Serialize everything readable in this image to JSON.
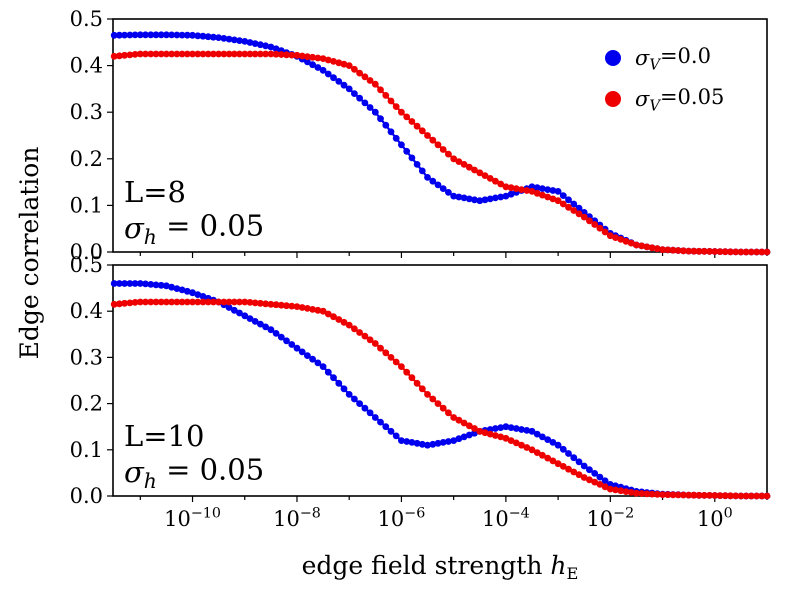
{
  "chart_data": [
    {
      "type": "line",
      "annotation_lines": [
        "L=8",
        "σ_h = 0.05"
      ],
      "ylabel": "Edge correlation",
      "xlabel": "",
      "xscale": "log",
      "xlim": [
        3e-12,
        10
      ],
      "ylim": [
        0,
        0.5
      ],
      "yticks": [
        "0.0",
        "0.1",
        "0.2",
        "0.3",
        "0.4",
        "0.5"
      ],
      "legend_position": "top-right",
      "series": [
        {
          "name": "σ_V=0.0",
          "color": "#0000ee",
          "x_log10": [
            -11.5,
            -11,
            -10.5,
            -10,
            -9.5,
            -9,
            -8.5,
            -8,
            -7.5,
            -7,
            -6.5,
            -6,
            -5.5,
            -5,
            -4.5,
            -4,
            -3.5,
            -3,
            -2.5,
            -2,
            -1.5,
            -1,
            -0.5,
            0,
            0.5,
            1
          ],
          "y": [
            0.465,
            0.466,
            0.466,
            0.465,
            0.46,
            0.452,
            0.44,
            0.42,
            0.39,
            0.35,
            0.3,
            0.23,
            0.16,
            0.12,
            0.11,
            0.12,
            0.14,
            0.13,
            0.085,
            0.04,
            0.015,
            0.005,
            0.002,
            0.001,
            0.0,
            0.0
          ]
        },
        {
          "name": "σ_V=0.05",
          "color": "#ee0000",
          "x_log10": [
            -11.5,
            -11,
            -10.5,
            -10,
            -9.5,
            -9,
            -8.5,
            -8,
            -7.5,
            -7,
            -6.5,
            -6,
            -5.5,
            -5,
            -4.5,
            -4,
            -3.5,
            -3,
            -2.5,
            -2,
            -1.5,
            -1,
            -0.5,
            0,
            0.5,
            1
          ],
          "y": [
            0.42,
            0.425,
            0.425,
            0.425,
            0.425,
            0.425,
            0.425,
            0.422,
            0.415,
            0.4,
            0.36,
            0.3,
            0.25,
            0.2,
            0.17,
            0.14,
            0.13,
            0.11,
            0.075,
            0.035,
            0.015,
            0.005,
            0.002,
            0.001,
            0.0,
            0.0
          ]
        }
      ]
    },
    {
      "type": "line",
      "annotation_lines": [
        "L=10",
        "σ_h = 0.05"
      ],
      "ylabel": "Edge correlation",
      "xlabel": "edge field strength h_E",
      "xscale": "log",
      "xlim": [
        3e-12,
        10
      ],
      "ylim": [
        0,
        0.5
      ],
      "yticks": [
        "0.0",
        "0.1",
        "0.2",
        "0.3",
        "0.4",
        "0.5"
      ],
      "xticks": [
        {
          "base": "10",
          "exp": "−10",
          "log10": -10
        },
        {
          "base": "10",
          "exp": "−8",
          "log10": -8
        },
        {
          "base": "10",
          "exp": "−6",
          "log10": -6
        },
        {
          "base": "10",
          "exp": "−4",
          "log10": -4
        },
        {
          "base": "10",
          "exp": "−2",
          "log10": -2
        },
        {
          "base": "10",
          "exp": "0",
          "log10": 0
        }
      ],
      "series": [
        {
          "name": "σ_V=0.0",
          "color": "#0000ee",
          "x_log10": [
            -11.5,
            -11,
            -10.5,
            -10,
            -9.5,
            -9,
            -8.5,
            -8,
            -7.5,
            -7,
            -6.5,
            -6,
            -5.5,
            -5,
            -4.5,
            -4,
            -3.5,
            -3,
            -2.5,
            -2,
            -1.5,
            -1,
            -0.5,
            0,
            0.5,
            1
          ],
          "y": [
            0.46,
            0.46,
            0.455,
            0.44,
            0.42,
            0.39,
            0.36,
            0.32,
            0.28,
            0.22,
            0.17,
            0.12,
            0.11,
            0.12,
            0.14,
            0.15,
            0.14,
            0.11,
            0.065,
            0.025,
            0.01,
            0.004,
            0.002,
            0.001,
            0.0,
            0.0
          ]
        },
        {
          "name": "σ_V=0.05",
          "color": "#ee0000",
          "x_log10": [
            -11.5,
            -11,
            -10.5,
            -10,
            -9.5,
            -9,
            -8.5,
            -8,
            -7.5,
            -7,
            -6.5,
            -6,
            -5.5,
            -5,
            -4.5,
            -4,
            -3.5,
            -3,
            -2.5,
            -2,
            -1.5,
            -1,
            -0.5,
            0,
            0.5,
            1
          ],
          "y": [
            0.415,
            0.42,
            0.42,
            0.42,
            0.42,
            0.42,
            0.415,
            0.41,
            0.4,
            0.37,
            0.33,
            0.28,
            0.22,
            0.17,
            0.14,
            0.125,
            0.1,
            0.07,
            0.04,
            0.015,
            0.006,
            0.003,
            0.002,
            0.001,
            0.0,
            0.0
          ]
        }
      ]
    }
  ]
}
